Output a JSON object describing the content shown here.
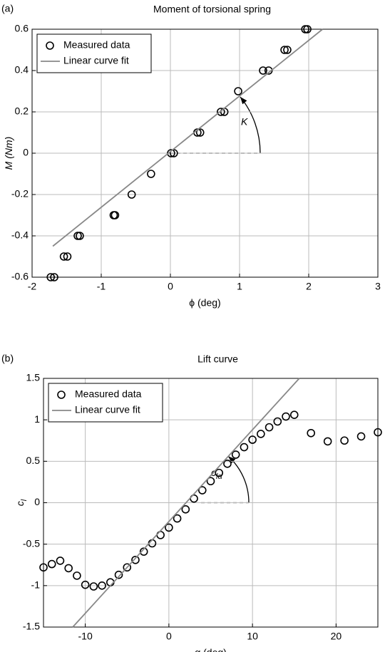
{
  "chart_data": [
    {
      "type": "scatter",
      "panel_label": "(a)",
      "title": "Moment of torsional spring",
      "xlabel": "ϕ (deg)",
      "ylabel": "M (Nm)",
      "xlim": [
        -2,
        3
      ],
      "xticks": [
        -2,
        -1,
        0,
        1,
        2,
        3
      ],
      "ylim": [
        -0.6,
        0.6
      ],
      "yticks": [
        -0.6,
        -0.4,
        -0.2,
        0,
        0.2,
        0.4,
        0.6
      ],
      "grid": true,
      "legend": "upper left",
      "annotation": "K",
      "series": [
        {
          "name": "Measured data",
          "mode": "markers",
          "color": "#000000",
          "x": [
            -1.73,
            -1.68,
            -1.54,
            -1.49,
            -1.34,
            -1.31,
            -0.82,
            -0.8,
            -0.56,
            -0.28,
            0.01,
            0.05,
            0.39,
            0.43,
            0.73,
            0.78,
            0.98,
            1.34,
            1.42,
            1.65,
            1.69,
            1.95,
            1.98
          ],
          "values": [
            -0.6,
            -0.6,
            -0.5,
            -0.5,
            -0.4,
            -0.4,
            -0.3,
            -0.3,
            -0.2,
            -0.1,
            0,
            0,
            0.1,
            0.1,
            0.2,
            0.2,
            0.3,
            0.4,
            0.4,
            0.5,
            0.5,
            0.6,
            0.6
          ]
        },
        {
          "name": "Linear curve fit",
          "mode": "line",
          "color": "#888888",
          "x": [
            -1.7,
            2.2
          ],
          "values": [
            -0.45,
            0.6
          ]
        }
      ]
    },
    {
      "type": "scatter",
      "panel_label": "(b)",
      "title": "Lift curve",
      "xlabel": "α (deg)",
      "ylabel": "c",
      "ylabel_subscript": "l",
      "xlim": [
        -15,
        25
      ],
      "xticks": [
        -10,
        0,
        10,
        20
      ],
      "ylim": [
        -1.5,
        1.5
      ],
      "yticks": [
        -1.5,
        -1,
        -0.5,
        0,
        0.5,
        1,
        1.5
      ],
      "grid": true,
      "legend": "upper left",
      "annotation": "c",
      "annotation_subscript": "lα",
      "series": [
        {
          "name": "Measured data",
          "mode": "markers",
          "color": "#000000",
          "x": [
            -15,
            -14,
            -13,
            -12,
            -11,
            -10,
            -9,
            -8,
            -7,
            -6,
            -5,
            -4,
            -3,
            -2,
            -1,
            0,
            1,
            2,
            3,
            4,
            5,
            6,
            7,
            8,
            9,
            10,
            11,
            12,
            13,
            14,
            15,
            17,
            19,
            21,
            23,
            25
          ],
          "values": [
            -0.78,
            -0.74,
            -0.7,
            -0.79,
            -0.88,
            -0.99,
            -1.01,
            -1.0,
            -0.96,
            -0.87,
            -0.78,
            -0.69,
            -0.59,
            -0.49,
            -0.39,
            -0.3,
            -0.19,
            -0.08,
            0.05,
            0.15,
            0.26,
            0.36,
            0.47,
            0.58,
            0.67,
            0.76,
            0.83,
            0.91,
            0.98,
            1.04,
            1.06,
            0.84,
            0.74,
            0.75,
            0.8,
            0.85
          ]
        },
        {
          "name": "Linear curve fit",
          "mode": "line",
          "color": "#888888",
          "x": [
            -11.5,
            15.6
          ],
          "values": [
            -1.5,
            1.5
          ]
        }
      ]
    }
  ]
}
